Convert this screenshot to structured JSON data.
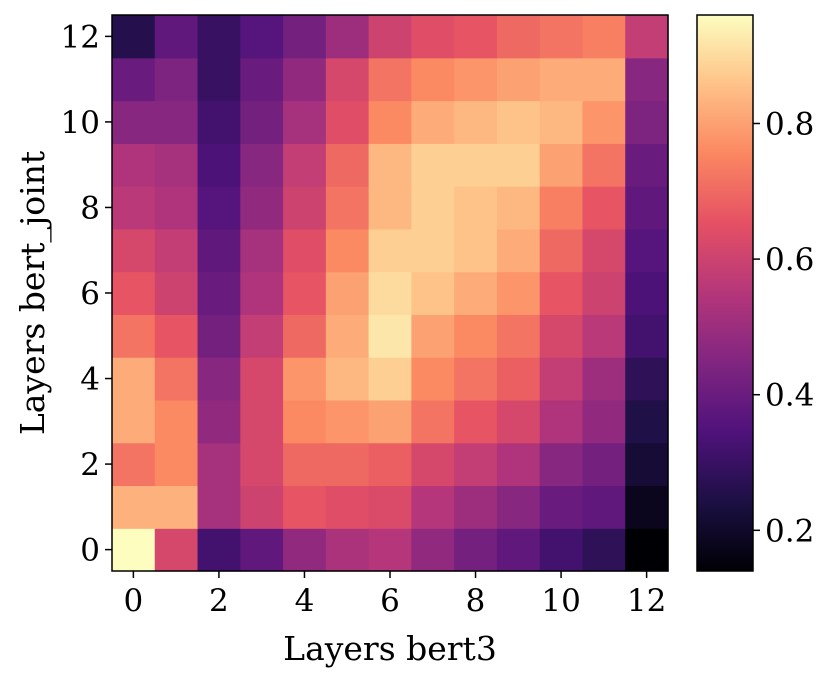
{
  "chart_data": {
    "type": "heatmap",
    "xlabel": "Layers bert3",
    "ylabel": "Layers bert_joint",
    "x_ticks": [
      "0",
      "2",
      "4",
      "6",
      "8",
      "10",
      "12"
    ],
    "y_ticks": [
      "0",
      "2",
      "4",
      "6",
      "8",
      "10",
      "12"
    ],
    "colorbar_ticks": [
      "0.2",
      "0.4",
      "0.6",
      "0.8"
    ],
    "colormap": "magma",
    "vmin": 0.14,
    "vmax": 0.96,
    "rows_note_bottom_to_top": true,
    "values": [
      [
        0.96,
        0.62,
        0.32,
        0.38,
        0.48,
        0.53,
        0.55,
        0.48,
        0.42,
        0.38,
        0.32,
        0.28,
        0.14
      ],
      [
        0.83,
        0.83,
        0.52,
        0.6,
        0.66,
        0.64,
        0.63,
        0.55,
        0.5,
        0.46,
        0.4,
        0.38,
        0.18
      ],
      [
        0.72,
        0.76,
        0.52,
        0.62,
        0.7,
        0.7,
        0.68,
        0.62,
        0.58,
        0.54,
        0.46,
        0.42,
        0.22
      ],
      [
        0.82,
        0.76,
        0.48,
        0.62,
        0.76,
        0.78,
        0.8,
        0.72,
        0.66,
        0.62,
        0.54,
        0.48,
        0.25
      ],
      [
        0.82,
        0.72,
        0.46,
        0.62,
        0.78,
        0.84,
        0.88,
        0.76,
        0.72,
        0.68,
        0.58,
        0.5,
        0.28
      ],
      [
        0.72,
        0.66,
        0.42,
        0.58,
        0.7,
        0.82,
        0.92,
        0.8,
        0.76,
        0.72,
        0.62,
        0.56,
        0.32
      ],
      [
        0.66,
        0.6,
        0.4,
        0.54,
        0.66,
        0.8,
        0.9,
        0.86,
        0.82,
        0.78,
        0.66,
        0.6,
        0.34
      ],
      [
        0.62,
        0.58,
        0.38,
        0.52,
        0.64,
        0.76,
        0.88,
        0.88,
        0.86,
        0.82,
        0.7,
        0.62,
        0.36
      ],
      [
        0.56,
        0.54,
        0.36,
        0.48,
        0.6,
        0.72,
        0.84,
        0.88,
        0.86,
        0.84,
        0.74,
        0.66,
        0.38
      ],
      [
        0.54,
        0.52,
        0.34,
        0.46,
        0.58,
        0.7,
        0.84,
        0.88,
        0.88,
        0.88,
        0.8,
        0.72,
        0.4
      ],
      [
        0.46,
        0.46,
        0.32,
        0.42,
        0.52,
        0.64,
        0.76,
        0.82,
        0.84,
        0.86,
        0.84,
        0.78,
        0.44
      ],
      [
        0.4,
        0.44,
        0.3,
        0.4,
        0.48,
        0.62,
        0.72,
        0.76,
        0.78,
        0.8,
        0.82,
        0.82,
        0.46
      ],
      [
        0.26,
        0.38,
        0.3,
        0.36,
        0.42,
        0.5,
        0.6,
        0.64,
        0.66,
        0.7,
        0.72,
        0.74,
        0.58
      ]
    ]
  }
}
